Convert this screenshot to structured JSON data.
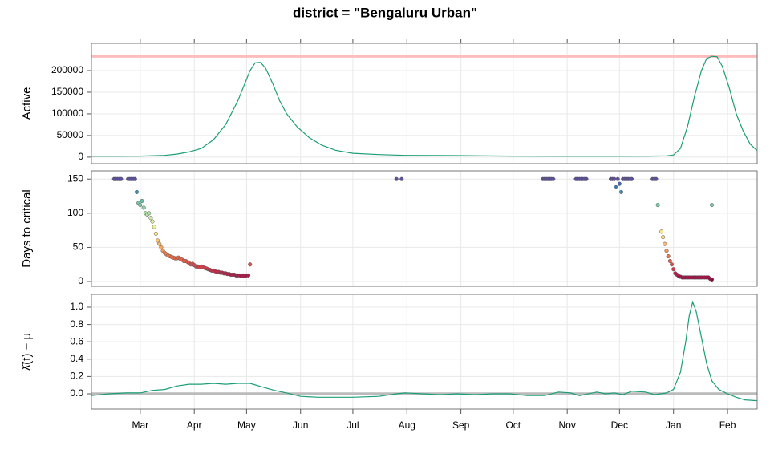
{
  "title": "district = \"Bengaluru Urban\"",
  "chart_data": [
    {
      "type": "line",
      "ylabel": "Active",
      "color": "#1b9e77",
      "ylim": [
        -15000,
        263000
      ],
      "yticks": [
        0,
        50000,
        100000,
        150000,
        200000
      ],
      "hline": 233000,
      "hline_color": "#ffbcbc",
      "grid": true,
      "x": [
        0,
        14,
        28,
        42,
        49,
        56,
        63,
        70,
        77,
        84,
        88,
        91,
        94,
        97,
        100,
        104,
        108,
        112,
        118,
        125,
        132,
        140,
        150,
        165,
        180,
        210,
        240,
        270,
        300,
        320,
        330,
        334,
        338,
        342,
        346,
        350,
        353,
        356,
        359,
        362,
        366,
        370,
        374,
        378,
        382
      ],
      "values": [
        2000,
        2000,
        2500,
        4000,
        7000,
        12000,
        20000,
        40000,
        75000,
        130000,
        170000,
        200000,
        218000,
        219000,
        205000,
        170000,
        130000,
        100000,
        70000,
        45000,
        28000,
        16000,
        9000,
        6000,
        4000,
        3500,
        2500,
        2000,
        2000,
        2500,
        3000,
        5000,
        20000,
        70000,
        140000,
        200000,
        228000,
        233000,
        232000,
        210000,
        160000,
        100000,
        60000,
        30000,
        15000
      ]
    },
    {
      "type": "scatter",
      "ylabel": "Days to critical",
      "ylim": [
        -7,
        162
      ],
      "yticks": [
        0,
        50,
        100,
        150
      ],
      "grid": true,
      "colormap": [
        "#9e0142",
        "#d53e4f",
        "#f46d43",
        "#fdae61",
        "#fee08b",
        "#e6f598",
        "#abdda4",
        "#66c2a5",
        "#3288bd",
        "#5e4fa2"
      ],
      "x": [
        13,
        14,
        15,
        16,
        17,
        21,
        22,
        23,
        24,
        25,
        26,
        27,
        28,
        29,
        30,
        31,
        32,
        33,
        34,
        35,
        36,
        37,
        38,
        39,
        40,
        41,
        42,
        43,
        44,
        45,
        46,
        47,
        48,
        49,
        50,
        51,
        52,
        53,
        54,
        55,
        56,
        57,
        58,
        59,
        60,
        61,
        62,
        63,
        64,
        65,
        66,
        67,
        68,
        69,
        70,
        71,
        72,
        73,
        74,
        75,
        76,
        77,
        78,
        79,
        80,
        81,
        82,
        83,
        84,
        85,
        86,
        87,
        88,
        89,
        90,
        91,
        175,
        178,
        259,
        260,
        261,
        262,
        263,
        264,
        265,
        278,
        279,
        280,
        281,
        282,
        283,
        284,
        298,
        299,
        300,
        302,
        305,
        306,
        307,
        308,
        309,
        310,
        301,
        303,
        304,
        322,
        323,
        324,
        325,
        327,
        328,
        329,
        330,
        331,
        332,
        333,
        334,
        335,
        336,
        337,
        338,
        339,
        340,
        341,
        342,
        343,
        344,
        345,
        346,
        347,
        348,
        349,
        350,
        351,
        352,
        353,
        354,
        355,
        356,
        356
      ],
      "values": [
        150,
        150,
        150,
        150,
        150,
        150,
        150,
        150,
        150,
        150,
        131,
        115,
        112,
        118,
        108,
        100,
        98,
        100,
        93,
        88,
        80,
        70,
        60,
        55,
        50,
        45,
        42,
        40,
        38,
        37,
        36,
        35,
        34,
        34,
        35,
        33,
        32,
        30,
        30,
        29,
        27,
        25,
        26,
        24,
        22,
        22,
        21,
        22,
        21,
        20,
        19,
        18,
        17,
        16,
        16,
        15,
        14,
        14,
        13,
        13,
        12,
        12,
        11,
        11,
        10,
        10,
        10,
        9,
        9,
        9,
        8,
        9,
        8,
        9,
        9,
        25,
        150,
        150,
        150,
        150,
        150,
        150,
        150,
        150,
        150,
        150,
        150,
        150,
        150,
        150,
        150,
        150,
        150,
        150,
        150,
        150,
        150,
        150,
        150,
        150,
        150,
        150,
        138,
        143,
        131,
        150,
        150,
        150,
        112,
        73,
        65,
        55,
        45,
        37,
        30,
        25,
        18,
        12,
        10,
        8,
        7,
        6,
        6,
        6,
        6,
        6,
        6,
        6,
        6,
        6,
        6,
        6,
        6,
        6,
        6,
        6,
        6,
        4,
        3,
        112
      ]
    },
    {
      "type": "line",
      "ylabel": "λ̂(t) − μ",
      "color": "#1b9e77",
      "ylim": [
        -0.176,
        1.148
      ],
      "yticks": [
        {
          "value": 0,
          "label": "0.0"
        },
        0.2,
        0.4,
        0.6,
        0.8,
        {
          "value": 1,
          "label": "1.0"
        }
      ],
      "hline": 0,
      "hline_color": "#bbbbbb",
      "grid": true,
      "xlim": [
        0,
        382
      ],
      "xticks": [
        {
          "value": 28,
          "label": "Mar"
        },
        {
          "value": 59,
          "label": "Apr"
        },
        {
          "value": 89,
          "label": "May"
        },
        {
          "value": 120,
          "label": "Jun"
        },
        {
          "value": 150,
          "label": "Jul"
        },
        {
          "value": 181,
          "label": "Aug"
        },
        {
          "value": 212,
          "label": "Sep"
        },
        {
          "value": 242,
          "label": "Oct"
        },
        {
          "value": 273,
          "label": "Nov"
        },
        {
          "value": 303,
          "label": "Dec"
        },
        {
          "value": 334,
          "label": "Jan"
        },
        {
          "value": 365,
          "label": "Feb"
        }
      ],
      "x": [
        0,
        10,
        20,
        28,
        35,
        42,
        49,
        56,
        63,
        70,
        77,
        84,
        91,
        98,
        105,
        112,
        120,
        130,
        150,
        165,
        175,
        180,
        190,
        200,
        210,
        220,
        230,
        240,
        250,
        260,
        268,
        275,
        280,
        290,
        295,
        300,
        305,
        310,
        318,
        323,
        330,
        334,
        338,
        341,
        343,
        345,
        347,
        350,
        353,
        356,
        360,
        365,
        370,
        375,
        382
      ],
      "values": [
        -0.02,
        0,
        0.01,
        0.01,
        0.04,
        0.05,
        0.09,
        0.11,
        0.11,
        0.12,
        0.11,
        0.12,
        0.12,
        0.08,
        0.04,
        0.01,
        -0.03,
        -0.04,
        -0.04,
        -0.03,
        0,
        0.01,
        0,
        -0.01,
        0,
        -0.01,
        0,
        0,
        -0.02,
        -0.02,
        0.02,
        0.01,
        -0.02,
        0.02,
        0,
        0.01,
        -0.01,
        0.03,
        0.02,
        -0.01,
        0.01,
        0.05,
        0.25,
        0.6,
        0.9,
        1.06,
        0.95,
        0.65,
        0.35,
        0.15,
        0.05,
        0,
        -0.04,
        -0.07,
        -0.08
      ]
    }
  ]
}
